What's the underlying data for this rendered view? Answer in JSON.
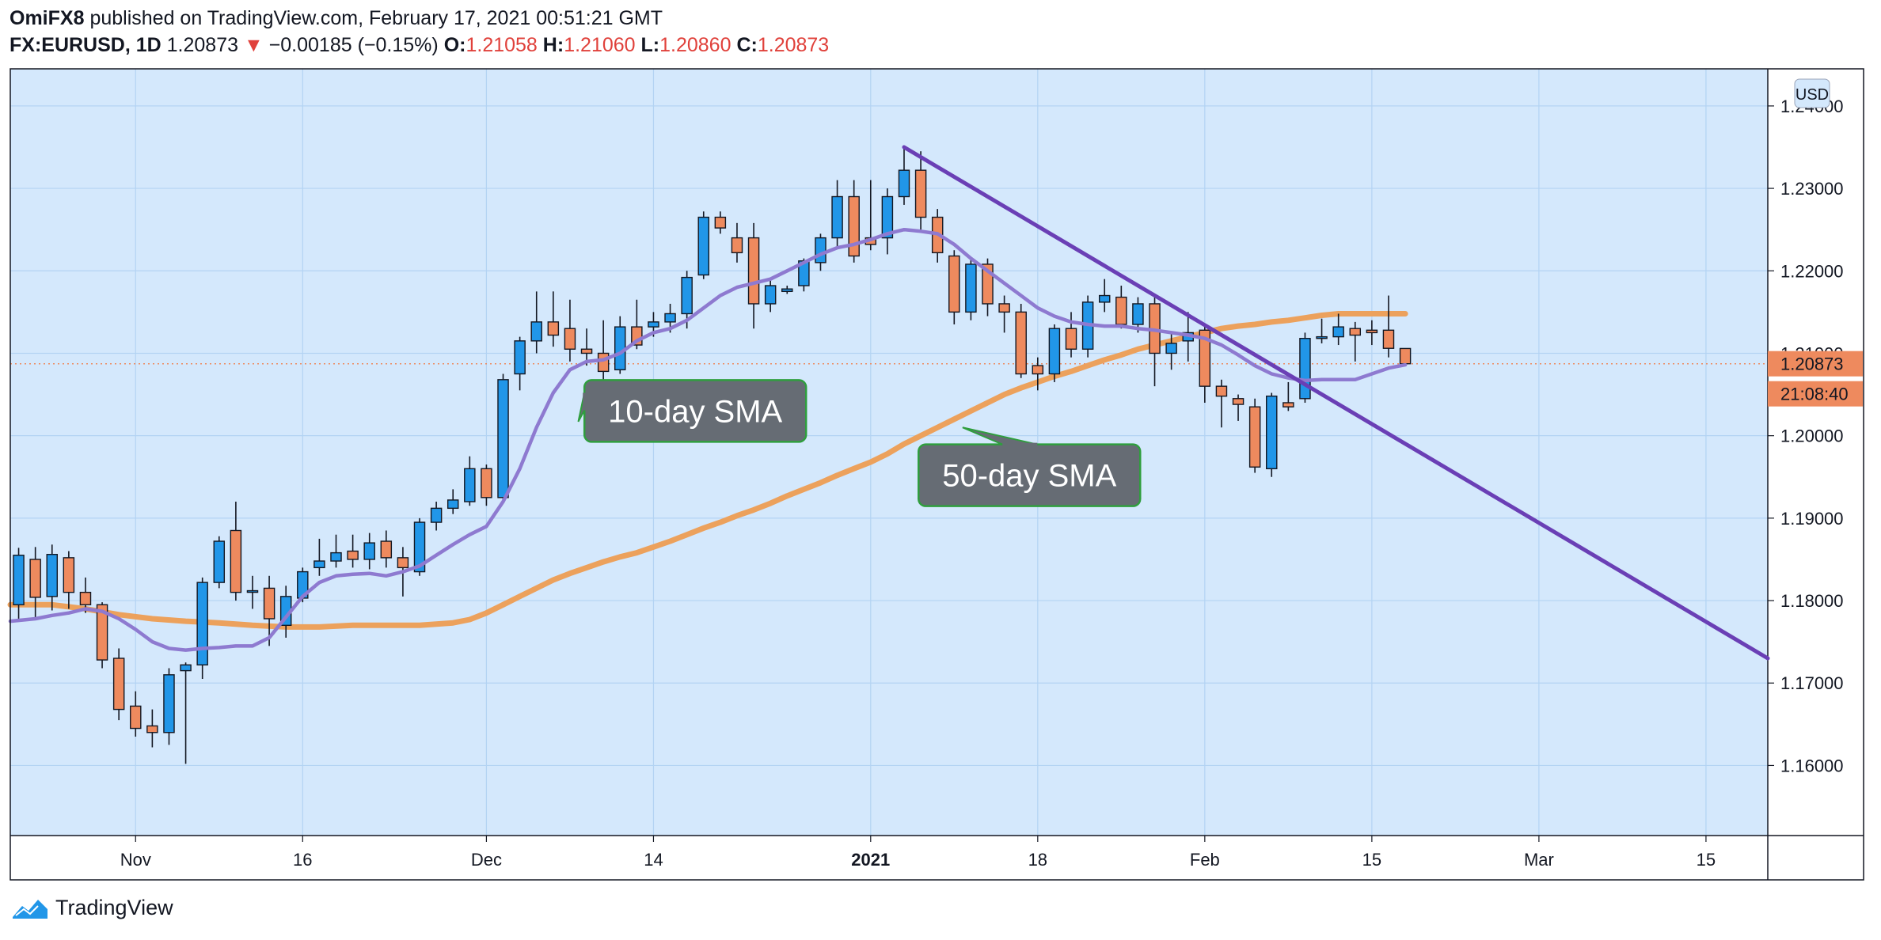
{
  "header": {
    "author": "OmiFX8",
    "published_text": "published on TradingView.com, February 17, 2021 00:51:21 GMT",
    "symbol": "FX:EURUSD, 1D",
    "last": "1.20873",
    "change_arrow": "▼",
    "change": "−0.00185 (−0.15%)",
    "o_label": "O:",
    "o_value": "1.21058",
    "h_label": "H:",
    "h_value": "1.21060",
    "l_label": "L:",
    "l_value": "1.20860",
    "c_label": "C:",
    "c_value": "1.20873"
  },
  "footer": {
    "brand": "TradingView",
    "logo_icon": "tradingview-logo-icon"
  },
  "chart_data": {
    "type": "candlestick",
    "symbol": "FX:EURUSD",
    "timeframe": "1D",
    "currency_label": "USD",
    "ylim": [
      1.1515,
      1.2445
    ],
    "y_ticks": [
      "1.16000",
      "1.17000",
      "1.18000",
      "1.19000",
      "1.20000",
      "1.21000",
      "1.22000",
      "1.23000",
      "1.24000"
    ],
    "x_ticks": [
      {
        "label": "Nov",
        "day": 7
      },
      {
        "label": "16",
        "day": 17
      },
      {
        "label": "Dec",
        "day": 28
      },
      {
        "label": "14",
        "day": 38
      },
      {
        "label": "2021",
        "day": 51,
        "bold": true
      },
      {
        "label": "18",
        "day": 61
      },
      {
        "label": "Feb",
        "day": 71
      },
      {
        "label": "15",
        "day": 81
      },
      {
        "label": "Mar",
        "day": 91
      },
      {
        "label": "15",
        "day": 101
      }
    ],
    "x_range": [
      -0.5,
      104.7
    ],
    "current_price_tag": "1.20873",
    "countdown_tag": "21:08:40",
    "current_price": 1.20873,
    "colors": {
      "background": "#d4e8fc",
      "grid": "#b3d3f3",
      "up": "#2196e8",
      "down": "#ee8a5e",
      "sma10": "#8e7ad0",
      "sma50": "#eca15c",
      "trendline": "#6a3fb5",
      "price_tag": "#ee8a5e",
      "callout": "#666c74",
      "callout_border": "#2f9e3e",
      "price_axis_text": "#131722"
    },
    "candles": [
      {
        "d": 0,
        "o": 1.1795,
        "h": 1.1864,
        "l": 1.1778,
        "c": 1.1855
      },
      {
        "d": 1,
        "o": 1.185,
        "h": 1.1865,
        "l": 1.1778,
        "c": 1.1804
      },
      {
        "d": 2,
        "o": 1.1805,
        "h": 1.1868,
        "l": 1.1788,
        "c": 1.1856
      },
      {
        "d": 3,
        "o": 1.1852,
        "h": 1.186,
        "l": 1.179,
        "c": 1.181
      },
      {
        "d": 4,
        "o": 1.181,
        "h": 1.1828,
        "l": 1.1785,
        "c": 1.1795
      },
      {
        "d": 5,
        "o": 1.1795,
        "h": 1.1798,
        "l": 1.1718,
        "c": 1.1728
      },
      {
        "d": 6,
        "o": 1.173,
        "h": 1.1742,
        "l": 1.1655,
        "c": 1.1668
      },
      {
        "d": 7,
        "o": 1.1672,
        "h": 1.169,
        "l": 1.1635,
        "c": 1.1645
      },
      {
        "d": 8,
        "o": 1.1648,
        "h": 1.1668,
        "l": 1.1622,
        "c": 1.164
      },
      {
        "d": 9,
        "o": 1.164,
        "h": 1.1718,
        "l": 1.1625,
        "c": 1.171
      },
      {
        "d": 10,
        "o": 1.1715,
        "h": 1.1725,
        "l": 1.1602,
        "c": 1.1722
      },
      {
        "d": 11,
        "o": 1.1722,
        "h": 1.1828,
        "l": 1.1705,
        "c": 1.1822
      },
      {
        "d": 12,
        "o": 1.1822,
        "h": 1.1878,
        "l": 1.1815,
        "c": 1.1872
      },
      {
        "d": 13,
        "o": 1.1885,
        "h": 1.192,
        "l": 1.18,
        "c": 1.181
      },
      {
        "d": 14,
        "o": 1.1812,
        "h": 1.183,
        "l": 1.179,
        "c": 1.1812
      },
      {
        "d": 15,
        "o": 1.1815,
        "h": 1.183,
        "l": 1.1745,
        "c": 1.1778
      },
      {
        "d": 16,
        "o": 1.177,
        "h": 1.1818,
        "l": 1.1755,
        "c": 1.1805
      },
      {
        "d": 17,
        "o": 1.1803,
        "h": 1.184,
        "l": 1.1798,
        "c": 1.1835
      },
      {
        "d": 18,
        "o": 1.184,
        "h": 1.1875,
        "l": 1.183,
        "c": 1.1848
      },
      {
        "d": 19,
        "o": 1.1848,
        "h": 1.188,
        "l": 1.184,
        "c": 1.1858
      },
      {
        "d": 20,
        "o": 1.186,
        "h": 1.188,
        "l": 1.184,
        "c": 1.185
      },
      {
        "d": 21,
        "o": 1.185,
        "h": 1.1882,
        "l": 1.1838,
        "c": 1.187
      },
      {
        "d": 22,
        "o": 1.1872,
        "h": 1.1885,
        "l": 1.184,
        "c": 1.1852
      },
      {
        "d": 23,
        "o": 1.1852,
        "h": 1.1865,
        "l": 1.1805,
        "c": 1.184
      },
      {
        "d": 24,
        "o": 1.1835,
        "h": 1.19,
        "l": 1.183,
        "c": 1.1895
      },
      {
        "d": 25,
        "o": 1.1895,
        "h": 1.192,
        "l": 1.1885,
        "c": 1.1912
      },
      {
        "d": 26,
        "o": 1.1912,
        "h": 1.1935,
        "l": 1.1905,
        "c": 1.1922
      },
      {
        "d": 27,
        "o": 1.192,
        "h": 1.1975,
        "l": 1.1915,
        "c": 1.196
      },
      {
        "d": 28,
        "o": 1.196,
        "h": 1.1965,
        "l": 1.1915,
        "c": 1.1925
      },
      {
        "d": 29,
        "o": 1.1925,
        "h": 1.2075,
        "l": 1.192,
        "c": 1.2068
      },
      {
        "d": 30,
        "o": 1.2075,
        "h": 1.212,
        "l": 1.2055,
        "c": 1.2115
      },
      {
        "d": 31,
        "o": 1.2115,
        "h": 1.2175,
        "l": 1.21,
        "c": 1.2138
      },
      {
        "d": 32,
        "o": 1.2138,
        "h": 1.2175,
        "l": 1.2108,
        "c": 1.2122
      },
      {
        "d": 33,
        "o": 1.213,
        "h": 1.2165,
        "l": 1.209,
        "c": 1.2105
      },
      {
        "d": 34,
        "o": 1.2105,
        "h": 1.213,
        "l": 1.2085,
        "c": 1.21
      },
      {
        "d": 35,
        "o": 1.21,
        "h": 1.214,
        "l": 1.206,
        "c": 1.2078
      },
      {
        "d": 36,
        "o": 1.208,
        "h": 1.2145,
        "l": 1.2075,
        "c": 1.2132
      },
      {
        "d": 37,
        "o": 1.2132,
        "h": 1.2165,
        "l": 1.2105,
        "c": 1.211
      },
      {
        "d": 38,
        "o": 1.2132,
        "h": 1.215,
        "l": 1.212,
        "c": 1.2138
      },
      {
        "d": 39,
        "o": 1.2138,
        "h": 1.216,
        "l": 1.2125,
        "c": 1.2148
      },
      {
        "d": 40,
        "o": 1.2148,
        "h": 1.22,
        "l": 1.213,
        "c": 1.2192
      },
      {
        "d": 41,
        "o": 1.2195,
        "h": 1.2272,
        "l": 1.219,
        "c": 1.2265
      },
      {
        "d": 42,
        "o": 1.2265,
        "h": 1.2272,
        "l": 1.2245,
        "c": 1.2252
      },
      {
        "d": 43,
        "o": 1.224,
        "h": 1.2258,
        "l": 1.221,
        "c": 1.2222
      },
      {
        "d": 44,
        "o": 1.224,
        "h": 1.2258,
        "l": 1.213,
        "c": 1.216
      },
      {
        "d": 45,
        "o": 1.216,
        "h": 1.219,
        "l": 1.215,
        "c": 1.2182
      },
      {
        "d": 46,
        "o": 1.2175,
        "h": 1.2182,
        "l": 1.2172,
        "c": 1.2178
      },
      {
        "d": 47,
        "o": 1.2182,
        "h": 1.2215,
        "l": 1.2175,
        "c": 1.2212
      },
      {
        "d": 48,
        "o": 1.221,
        "h": 1.2245,
        "l": 1.22,
        "c": 1.224
      },
      {
        "d": 49,
        "o": 1.224,
        "h": 1.231,
        "l": 1.223,
        "c": 1.229
      },
      {
        "d": 50,
        "o": 1.229,
        "h": 1.231,
        "l": 1.221,
        "c": 1.2218
      },
      {
        "d": 51,
        "o": 1.224,
        "h": 1.231,
        "l": 1.2225,
        "c": 1.2232
      },
      {
        "d": 52,
        "o": 1.224,
        "h": 1.23,
        "l": 1.222,
        "c": 1.229
      },
      {
        "d": 53,
        "o": 1.229,
        "h": 1.235,
        "l": 1.228,
        "c": 1.2322
      },
      {
        "d": 54,
        "o": 1.2322,
        "h": 1.2345,
        "l": 1.225,
        "c": 1.2265
      },
      {
        "d": 55,
        "o": 1.2265,
        "h": 1.2275,
        "l": 1.221,
        "c": 1.2222
      },
      {
        "d": 56,
        "o": 1.2218,
        "h": 1.2225,
        "l": 1.2135,
        "c": 1.215
      },
      {
        "d": 57,
        "o": 1.215,
        "h": 1.2215,
        "l": 1.214,
        "c": 1.2208
      },
      {
        "d": 58,
        "o": 1.2208,
        "h": 1.2215,
        "l": 1.2145,
        "c": 1.216
      },
      {
        "d": 59,
        "o": 1.216,
        "h": 1.217,
        "l": 1.2125,
        "c": 1.215
      },
      {
        "d": 60,
        "o": 1.215,
        "h": 1.216,
        "l": 1.207,
        "c": 1.2075
      },
      {
        "d": 61,
        "o": 1.2085,
        "h": 1.2095,
        "l": 1.2055,
        "c": 1.2075
      },
      {
        "d": 62,
        "o": 1.2075,
        "h": 1.2135,
        "l": 1.2065,
        "c": 1.213
      },
      {
        "d": 63,
        "o": 1.213,
        "h": 1.215,
        "l": 1.2095,
        "c": 1.2105
      },
      {
        "d": 64,
        "o": 1.2105,
        "h": 1.217,
        "l": 1.2095,
        "c": 1.2162
      },
      {
        "d": 65,
        "o": 1.2162,
        "h": 1.219,
        "l": 1.215,
        "c": 1.217
      },
      {
        "d": 66,
        "o": 1.2168,
        "h": 1.2182,
        "l": 1.213,
        "c": 1.2135
      },
      {
        "d": 67,
        "o": 1.2135,
        "h": 1.2168,
        "l": 1.2125,
        "c": 1.216
      },
      {
        "d": 68,
        "o": 1.216,
        "h": 1.217,
        "l": 1.206,
        "c": 1.21
      },
      {
        "d": 69,
        "o": 1.21,
        "h": 1.2125,
        "l": 1.208,
        "c": 1.2112
      },
      {
        "d": 70,
        "o": 1.2115,
        "h": 1.215,
        "l": 1.209,
        "c": 1.2125
      },
      {
        "d": 71,
        "o": 1.2128,
        "h": 1.2135,
        "l": 1.204,
        "c": 1.206
      },
      {
        "d": 72,
        "o": 1.206,
        "h": 1.2068,
        "l": 1.201,
        "c": 1.2048
      },
      {
        "d": 73,
        "o": 1.2045,
        "h": 1.205,
        "l": 1.2018,
        "c": 1.2038
      },
      {
        "d": 74,
        "o": 1.2035,
        "h": 1.2045,
        "l": 1.1955,
        "c": 1.1962
      },
      {
        "d": 75,
        "o": 1.196,
        "h": 1.2052,
        "l": 1.195,
        "c": 1.2048
      },
      {
        "d": 76,
        "o": 1.204,
        "h": 1.2065,
        "l": 1.203,
        "c": 1.2035
      },
      {
        "d": 77,
        "o": 1.2045,
        "h": 1.2125,
        "l": 1.204,
        "c": 1.2118
      },
      {
        "d": 78,
        "o": 1.2118,
        "h": 1.2142,
        "l": 1.2112,
        "c": 1.212
      },
      {
        "d": 79,
        "o": 1.212,
        "h": 1.2148,
        "l": 1.211,
        "c": 1.2132
      },
      {
        "d": 80,
        "o": 1.213,
        "h": 1.2138,
        "l": 1.209,
        "c": 1.2122
      },
      {
        "d": 81,
        "o": 1.2128,
        "h": 1.214,
        "l": 1.211,
        "c": 1.2125
      },
      {
        "d": 82,
        "o": 1.2128,
        "h": 1.217,
        "l": 1.2095,
        "c": 1.2106
      },
      {
        "d": 83,
        "o": 1.21058,
        "h": 1.2106,
        "l": 1.2086,
        "c": 1.20873
      }
    ],
    "sma10": [
      [
        -0.5,
        1.1775
      ],
      [
        1,
        1.1778
      ],
      [
        2,
        1.1782
      ],
      [
        3,
        1.1785
      ],
      [
        4,
        1.179
      ],
      [
        5,
        1.1787
      ],
      [
        6,
        1.1778
      ],
      [
        7,
        1.1765
      ],
      [
        8,
        1.175
      ],
      [
        9,
        1.1742
      ],
      [
        10,
        1.174
      ],
      [
        11,
        1.1742
      ],
      [
        12,
        1.1743
      ],
      [
        13,
        1.1745
      ],
      [
        14,
        1.1745
      ],
      [
        15,
        1.1755
      ],
      [
        16,
        1.178
      ],
      [
        17,
        1.1805
      ],
      [
        18,
        1.1822
      ],
      [
        19,
        1.183
      ],
      [
        20,
        1.1832
      ],
      [
        21,
        1.1833
      ],
      [
        22,
        1.183
      ],
      [
        23,
        1.1835
      ],
      [
        24,
        1.1842
      ],
      [
        25,
        1.1855
      ],
      [
        26,
        1.1868
      ],
      [
        27,
        1.188
      ],
      [
        28,
        1.189
      ],
      [
        29,
        1.192
      ],
      [
        30,
        1.196
      ],
      [
        31,
        1.201
      ],
      [
        32,
        1.2052
      ],
      [
        33,
        1.208
      ],
      [
        34,
        1.209
      ],
      [
        35,
        1.2092
      ],
      [
        36,
        1.21
      ],
      [
        37,
        1.2115
      ],
      [
        38,
        1.2125
      ],
      [
        39,
        1.213
      ],
      [
        40,
        1.214
      ],
      [
        41,
        1.2155
      ],
      [
        42,
        1.217
      ],
      [
        43,
        1.218
      ],
      [
        44,
        1.2185
      ],
      [
        45,
        1.219
      ],
      [
        46,
        1.22
      ],
      [
        47,
        1.221
      ],
      [
        48,
        1.222
      ],
      [
        49,
        1.2228
      ],
      [
        50,
        1.2232
      ],
      [
        51,
        1.2238
      ],
      [
        52,
        1.2245
      ],
      [
        53,
        1.225
      ],
      [
        54,
        1.2248
      ],
      [
        55,
        1.2245
      ],
      [
        56,
        1.2232
      ],
      [
        57,
        1.2215
      ],
      [
        58,
        1.22
      ],
      [
        59,
        1.2185
      ],
      [
        60,
        1.217
      ],
      [
        61,
        1.2155
      ],
      [
        62,
        1.2145
      ],
      [
        63,
        1.2138
      ],
      [
        64,
        1.2135
      ],
      [
        65,
        1.2133
      ],
      [
        66,
        1.2133
      ],
      [
        67,
        1.213
      ],
      [
        68,
        1.2128
      ],
      [
        69,
        1.2125
      ],
      [
        70,
        1.2122
      ],
      [
        71,
        1.2118
      ],
      [
        72,
        1.211
      ],
      [
        73,
        1.2098
      ],
      [
        74,
        1.2085
      ],
      [
        75,
        1.2075
      ],
      [
        76,
        1.207
      ],
      [
        77,
        1.2067
      ],
      [
        78,
        1.2068
      ],
      [
        79,
        1.2068
      ],
      [
        80,
        1.2068
      ],
      [
        81,
        1.2075
      ],
      [
        82,
        1.2082
      ],
      [
        83,
        1.2086
      ]
    ],
    "sma50": [
      [
        -0.5,
        1.1795
      ],
      [
        2,
        1.1795
      ],
      [
        4,
        1.179
      ],
      [
        6,
        1.1783
      ],
      [
        8,
        1.1778
      ],
      [
        10,
        1.1775
      ],
      [
        12,
        1.1773
      ],
      [
        14,
        1.177
      ],
      [
        16,
        1.1768
      ],
      [
        18,
        1.1768
      ],
      [
        20,
        1.177
      ],
      [
        22,
        1.177
      ],
      [
        24,
        1.177
      ],
      [
        26,
        1.1773
      ],
      [
        27,
        1.1777
      ],
      [
        28,
        1.1785
      ],
      [
        29,
        1.1795
      ],
      [
        30,
        1.1805
      ],
      [
        31,
        1.1815
      ],
      [
        32,
        1.1825
      ],
      [
        33,
        1.1833
      ],
      [
        34,
        1.184
      ],
      [
        35,
        1.1847
      ],
      [
        36,
        1.1853
      ],
      [
        37,
        1.1858
      ],
      [
        38,
        1.1865
      ],
      [
        39,
        1.1872
      ],
      [
        40,
        1.188
      ],
      [
        41,
        1.1888
      ],
      [
        42,
        1.1895
      ],
      [
        43,
        1.1903
      ],
      [
        44,
        1.191
      ],
      [
        45,
        1.1918
      ],
      [
        46,
        1.1927
      ],
      [
        47,
        1.1935
      ],
      [
        48,
        1.1943
      ],
      [
        49,
        1.1952
      ],
      [
        50,
        1.196
      ],
      [
        51,
        1.1968
      ],
      [
        52,
        1.1978
      ],
      [
        53,
        1.199
      ],
      [
        54,
        1.2
      ],
      [
        55,
        1.201
      ],
      [
        56,
        1.202
      ],
      [
        57,
        1.203
      ],
      [
        58,
        1.204
      ],
      [
        59,
        1.205
      ],
      [
        60,
        1.2058
      ],
      [
        61,
        1.2065
      ],
      [
        62,
        1.2072
      ],
      [
        63,
        1.2078
      ],
      [
        64,
        1.2085
      ],
      [
        65,
        1.2092
      ],
      [
        66,
        1.2098
      ],
      [
        67,
        1.2105
      ],
      [
        68,
        1.211
      ],
      [
        69,
        1.2115
      ],
      [
        70,
        1.212
      ],
      [
        71,
        1.2125
      ],
      [
        72,
        1.213
      ],
      [
        73,
        1.2133
      ],
      [
        74,
        1.2135
      ],
      [
        75,
        1.2138
      ],
      [
        76,
        1.214
      ],
      [
        77,
        1.2143
      ],
      [
        78,
        1.2146
      ],
      [
        79,
        1.2148
      ],
      [
        80,
        1.2148
      ],
      [
        81,
        1.2148
      ],
      [
        82,
        1.2148
      ],
      [
        83,
        1.2148
      ]
    ],
    "trendline": {
      "from": [
        53.0,
        1.235
      ],
      "to": [
        104.7,
        1.173
      ]
    },
    "annotations": [
      {
        "text": "10-day SMA",
        "box_day": 40.5,
        "box_price": 1.203,
        "pointer": [
          33.5,
          1.2017
        ]
      },
      {
        "text": "50-day SMA",
        "box_day": 60.5,
        "box_price": 1.1952,
        "pointer": [
          56.5,
          1.201
        ]
      }
    ]
  }
}
